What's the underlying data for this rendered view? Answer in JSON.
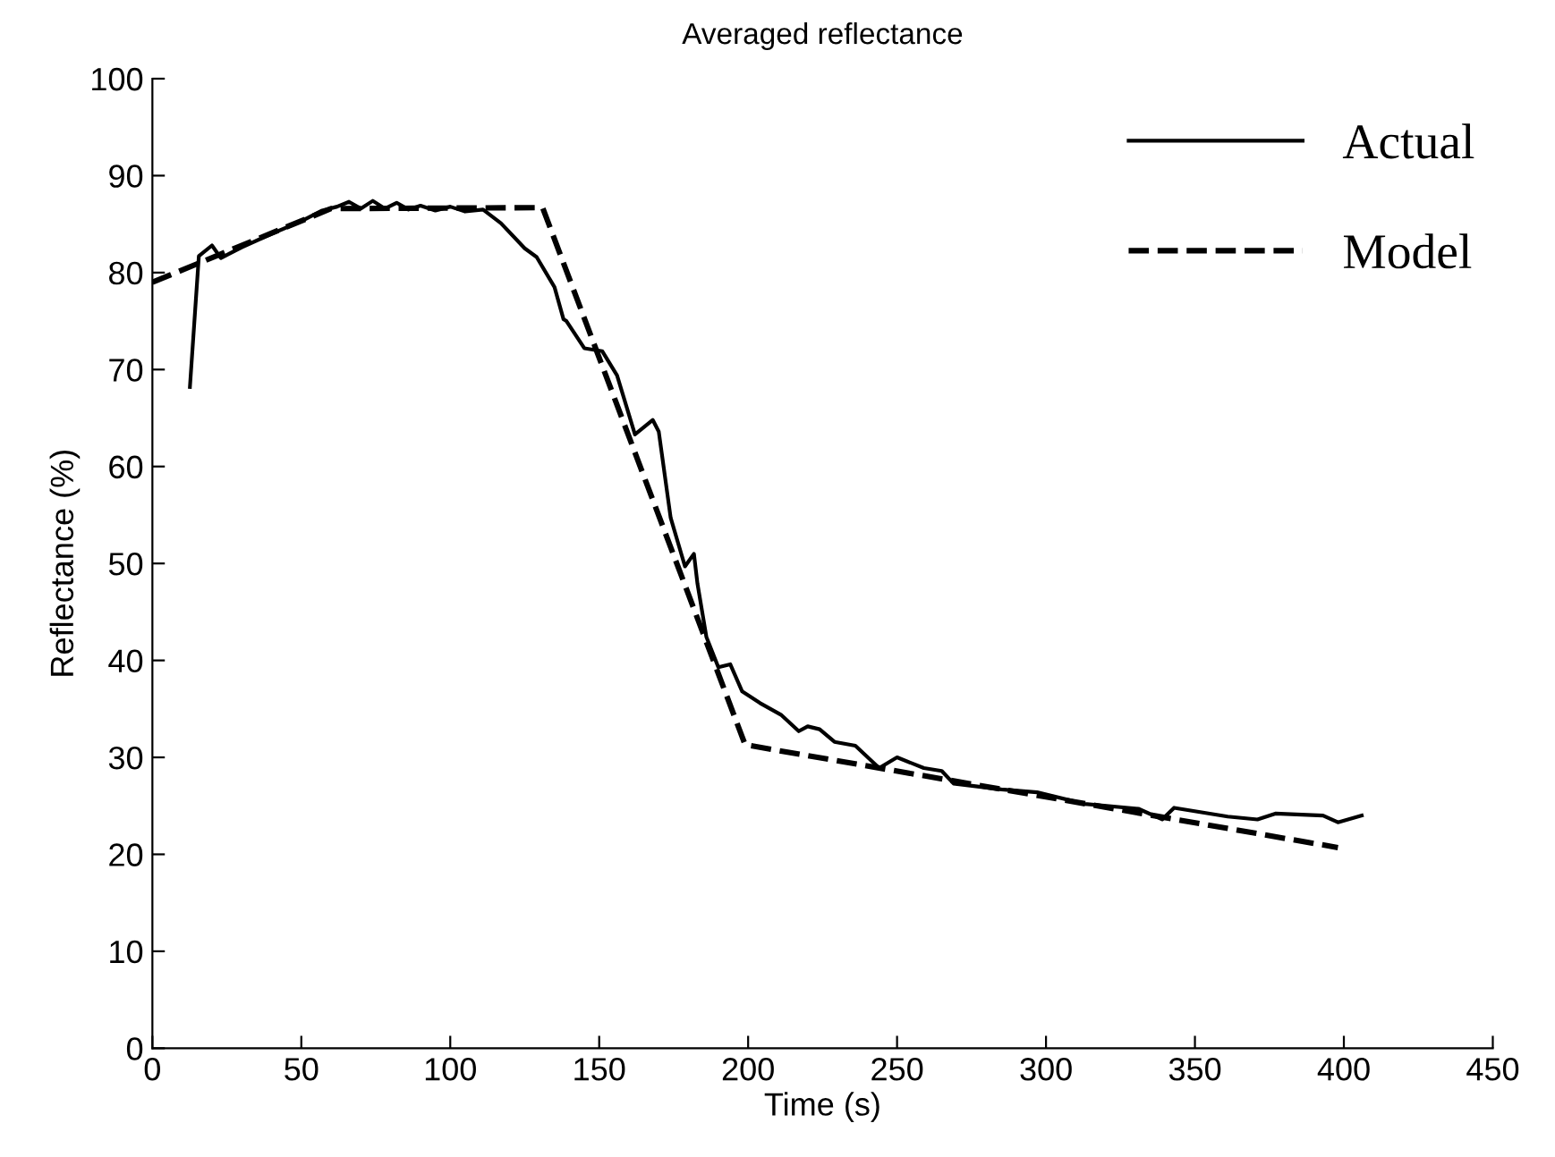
{
  "chart_data": {
    "type": "line",
    "title": "Averaged reflectance",
    "xlabel": "Time (s)",
    "ylabel": "Reflectance (%)",
    "xlim": [
      0,
      450
    ],
    "ylim": [
      0,
      100
    ],
    "xticks": [
      0,
      50,
      100,
      150,
      200,
      250,
      300,
      350,
      400,
      450
    ],
    "yticks": [
      0,
      10,
      20,
      30,
      40,
      50,
      60,
      70,
      80,
      90,
      100
    ],
    "grid": false,
    "legend": "top right",
    "series": [
      {
        "name": "Actual",
        "color": "#000000",
        "line_style": "solid",
        "x": [
          12.6,
          15.6,
          20,
          23,
          30,
          40,
          50,
          57,
          62,
          66,
          70,
          74,
          78,
          82,
          86,
          90,
          95,
          100,
          105,
          111,
          117,
          125,
          129,
          135,
          138,
          139,
          145,
          151,
          156,
          162,
          168,
          170,
          174,
          178.8,
          181.8,
          183,
          186,
          190,
          194,
          198,
          204,
          211,
          217,
          220,
          224,
          229,
          236,
          244,
          250,
          259,
          265,
          269,
          285,
          297,
          313,
          331,
          339,
          343,
          361,
          371,
          377,
          393,
          398,
          406
        ],
        "values": [
          68.2,
          81.7,
          82.8,
          81.5,
          82.6,
          84.0,
          85.3,
          86.4,
          86.8,
          87.3,
          86.6,
          87.4,
          86.6,
          87.2,
          86.5,
          86.9,
          86.4,
          86.8,
          86.3,
          86.5,
          85.1,
          82.5,
          81.6,
          78.5,
          75.2,
          75.0,
          72.2,
          71.9,
          69.4,
          63.3,
          64.8,
          63.6,
          54.7,
          49.7,
          51.0,
          47.9,
          42.4,
          39.3,
          39.6,
          36.8,
          35.6,
          34.4,
          32.7,
          33.2,
          32.9,
          31.6,
          31.2,
          28.9,
          30.0,
          28.9,
          28.6,
          27.3,
          26.7,
          26.4,
          25.2,
          24.7,
          23.6,
          24.8,
          23.9,
          23.6,
          24.2,
          24.0,
          23.3,
          24.0
        ]
      },
      {
        "name": "Model",
        "color": "#000000",
        "line_style": "dashed",
        "x": [
          0,
          60,
          131,
          199,
          398
        ],
        "values": [
          79.0,
          86.6,
          86.7,
          31.3,
          20.7
        ]
      }
    ]
  }
}
